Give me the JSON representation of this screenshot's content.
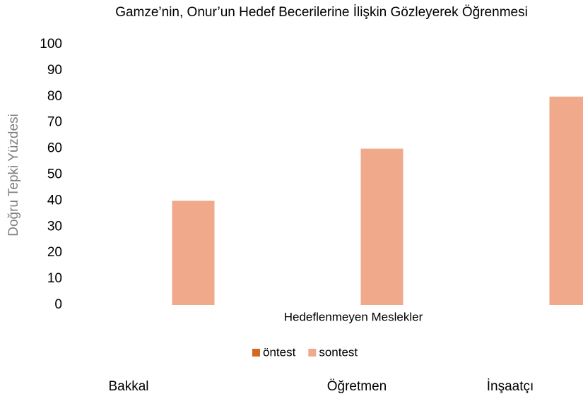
{
  "chart_data": {
    "type": "bar",
    "title": "Gamze’nin, Onur’un Hedef Becerilerine İlişkin Gözleyerek Öğrenmesi",
    "x_label": "Hedeflenmeyen Meslekler",
    "y_label": "Doğru Tepki Yüzdesi",
    "categories": [
      "Bakkal",
      "Öğretmen",
      "İnşaatçı"
    ],
    "series": [
      {
        "name": "öntest",
        "color": "#d2691e",
        "values": [
          0,
          0,
          0
        ]
      },
      {
        "name": "sontest",
        "color": "#f0a98a",
        "values": [
          40,
          60,
          80
        ]
      }
    ],
    "ylim": [
      0,
      100
    ],
    "yticks": [
      0,
      10,
      20,
      30,
      40,
      50,
      60,
      70,
      80,
      90,
      100
    ],
    "grid": false,
    "legend": "bottom"
  }
}
